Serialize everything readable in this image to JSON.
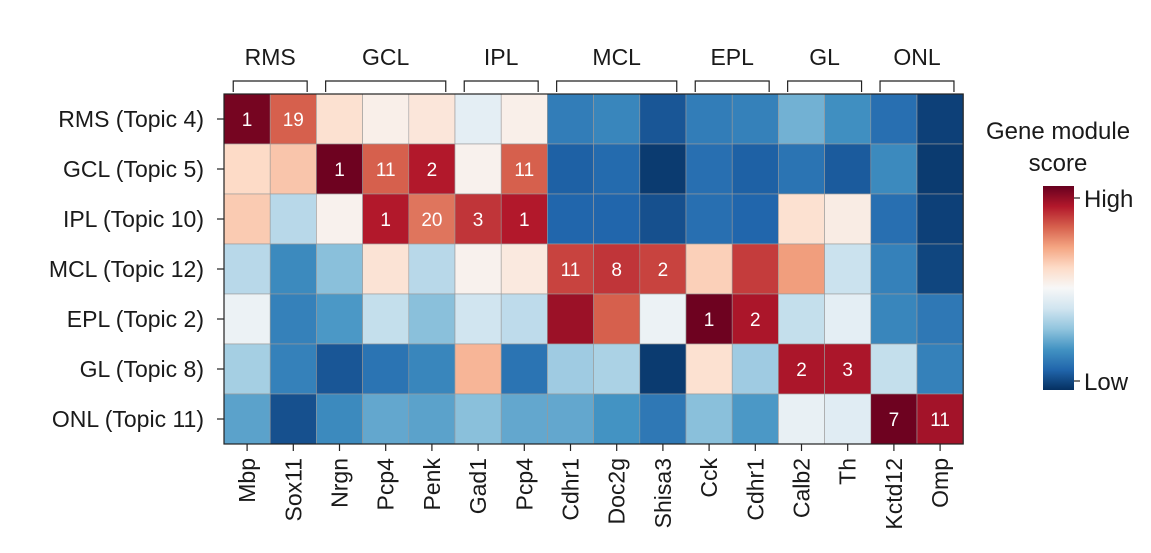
{
  "chart_data": {
    "type": "heatmap",
    "title": "",
    "groups": [
      {
        "label": "RMS",
        "start": 0,
        "end": 1
      },
      {
        "label": "GCL",
        "start": 2,
        "end": 4
      },
      {
        "label": "IPL",
        "start": 5,
        "end": 6
      },
      {
        "label": "MCL",
        "start": 7,
        "end": 9
      },
      {
        "label": "EPL",
        "start": 10,
        "end": 11
      },
      {
        "label": "GL",
        "start": 12,
        "end": 13
      },
      {
        "label": "ONL",
        "start": 14,
        "end": 15
      }
    ],
    "columns": [
      "Mbp",
      "Sox11",
      "Nrgn",
      "Pcp4",
      "Penk",
      "Gad1",
      "Pcp4",
      "Cdhr1",
      "Doc2g",
      "Shisa3",
      "Cck",
      "Cdhr1",
      "Calb2",
      "Th",
      "Kctd12",
      "Omp"
    ],
    "rows": [
      "RMS (Topic 4)",
      "GCL (Topic 5)",
      "IPL (Topic 10)",
      "MCL (Topic 12)",
      "EPL (Topic 2)",
      "GL (Topic 8)",
      "ONL (Topic 11)"
    ],
    "values": [
      [
        0.98,
        0.8,
        0.58,
        0.53,
        0.56,
        0.45,
        0.53,
        0.15,
        0.17,
        0.07,
        0.15,
        0.16,
        0.26,
        0.19,
        0.12,
        0.03
      ],
      [
        0.6,
        0.64,
        0.99,
        0.8,
        0.9,
        0.52,
        0.8,
        0.09,
        0.11,
        0.02,
        0.12,
        0.09,
        0.13,
        0.08,
        0.18,
        0.02
      ],
      [
        0.63,
        0.36,
        0.52,
        0.9,
        0.77,
        0.86,
        0.9,
        0.1,
        0.1,
        0.06,
        0.12,
        0.1,
        0.58,
        0.54,
        0.12,
        0.03
      ],
      [
        0.36,
        0.18,
        0.29,
        0.57,
        0.36,
        0.52,
        0.55,
        0.84,
        0.86,
        0.84,
        0.62,
        0.85,
        0.71,
        0.39,
        0.16,
        0.04
      ],
      [
        0.47,
        0.16,
        0.21,
        0.38,
        0.29,
        0.4,
        0.37,
        0.93,
        0.8,
        0.47,
        0.99,
        0.91,
        0.38,
        0.45,
        0.17,
        0.14
      ],
      [
        0.33,
        0.16,
        0.07,
        0.13,
        0.17,
        0.67,
        0.13,
        0.32,
        0.34,
        0.02,
        0.58,
        0.32,
        0.91,
        0.91,
        0.38,
        0.16
      ],
      [
        0.23,
        0.06,
        0.18,
        0.24,
        0.23,
        0.29,
        0.24,
        0.24,
        0.2,
        0.14,
        0.29,
        0.21,
        0.46,
        0.44,
        0.99,
        0.92
      ]
    ],
    "annotations": [
      {
        "row": 0,
        "col": 0,
        "text": "1"
      },
      {
        "row": 0,
        "col": 1,
        "text": "19"
      },
      {
        "row": 1,
        "col": 2,
        "text": "1"
      },
      {
        "row": 1,
        "col": 3,
        "text": "11"
      },
      {
        "row": 1,
        "col": 4,
        "text": "2"
      },
      {
        "row": 1,
        "col": 6,
        "text": "11"
      },
      {
        "row": 2,
        "col": 3,
        "text": "1"
      },
      {
        "row": 2,
        "col": 4,
        "text": "20"
      },
      {
        "row": 2,
        "col": 5,
        "text": "3"
      },
      {
        "row": 2,
        "col": 6,
        "text": "1"
      },
      {
        "row": 3,
        "col": 7,
        "text": "11"
      },
      {
        "row": 3,
        "col": 8,
        "text": "8"
      },
      {
        "row": 3,
        "col": 9,
        "text": "2"
      },
      {
        "row": 4,
        "col": 10,
        "text": "1"
      },
      {
        "row": 4,
        "col": 11,
        "text": "2"
      },
      {
        "row": 5,
        "col": 12,
        "text": "2"
      },
      {
        "row": 5,
        "col": 13,
        "text": "3"
      },
      {
        "row": 6,
        "col": 14,
        "text": "7"
      },
      {
        "row": 6,
        "col": 15,
        "text": "11"
      }
    ],
    "colorbar": {
      "title_line1": "Gene module",
      "title_line2": "score",
      "high_label": "High",
      "low_label": "Low"
    },
    "colormap": [
      "#053061",
      "#2166ac",
      "#4393c3",
      "#92c5de",
      "#d1e5f0",
      "#f7f7f7",
      "#fddbc7",
      "#f4a582",
      "#d6604d",
      "#b2182b",
      "#67001f"
    ],
    "xlabel": "",
    "ylabel": ""
  }
}
